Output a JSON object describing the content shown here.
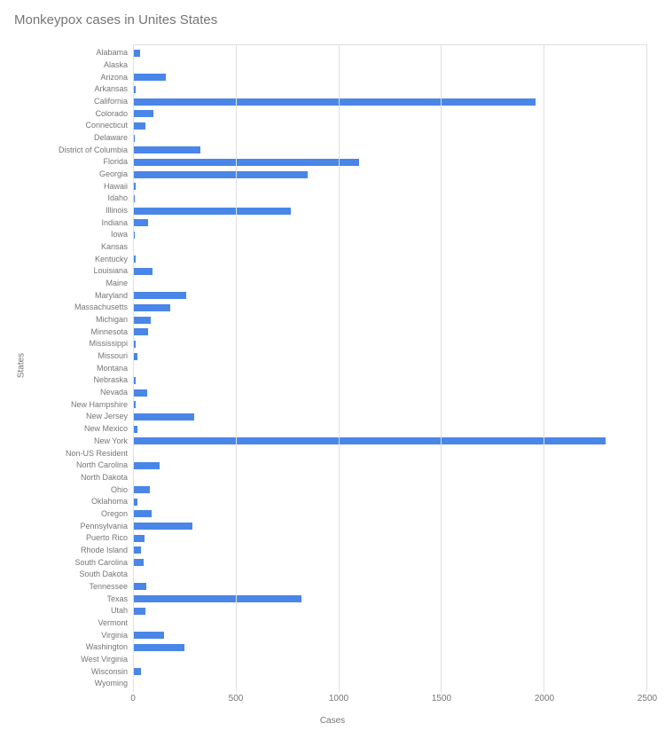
{
  "chart": {
    "type": "bar-horizontal",
    "title": "Monkeypox cases in Unites States",
    "ylabel": "States",
    "xlabel": "Cases",
    "xlim": [
      0,
      2500
    ],
    "xtick_step": 500,
    "xticks": [
      0,
      500,
      1000,
      1500,
      2000,
      2500
    ],
    "bar_color": "#4a86e8",
    "grid_color": "#e0e0e0",
    "background_color": "#ffffff",
    "title_color": "#757575",
    "label_color": "#757575",
    "tick_color": "#757575",
    "title_fontsize": 15,
    "label_fontsize": 10,
    "tick_fontsize": 10,
    "category_fontsize": 9,
    "categories": [
      "Alabama",
      "Alaska",
      "Arizona",
      "Arkansas",
      "California",
      "Colorado",
      "Connecticut",
      "Delaware",
      "District of Columbia",
      "Florida",
      "Georgia",
      "Hawaii",
      "Idaho",
      "Illinois",
      "Indiana",
      "Iowa",
      "Kansas",
      "Kentucky",
      "Louisiana",
      "Maine",
      "Maryland",
      "Massachusetts",
      "Michigan",
      "Minnesota",
      "Mississippi",
      "Missouri",
      "Montana",
      "Nebraska",
      "Nevada",
      "New Hampshire",
      "New Jersey",
      "New Mexico",
      "New York",
      "Non-US Resident",
      "North Carolina",
      "North Dakota",
      "Ohio",
      "Oklahoma",
      "Oregon",
      "Pennsylvania",
      "Puerto Rico",
      "Rhode Island",
      "South Carolina",
      "South Dakota",
      "Tennessee",
      "Texas",
      "Utah",
      "Vermont",
      "Virginia",
      "Washington",
      "West Virginia",
      "Wisconsin",
      "Wyoming"
    ],
    "values": [
      35,
      2,
      160,
      15,
      1960,
      100,
      60,
      10,
      330,
      1100,
      850,
      15,
      10,
      770,
      75,
      10,
      5,
      12,
      95,
      5,
      260,
      180,
      85,
      75,
      12,
      22,
      3,
      12,
      70,
      12,
      300,
      22,
      2300,
      3,
      130,
      2,
      80,
      20,
      90,
      290,
      55,
      40,
      50,
      2,
      65,
      820,
      60,
      2,
      150,
      250,
      5,
      40,
      2
    ]
  }
}
